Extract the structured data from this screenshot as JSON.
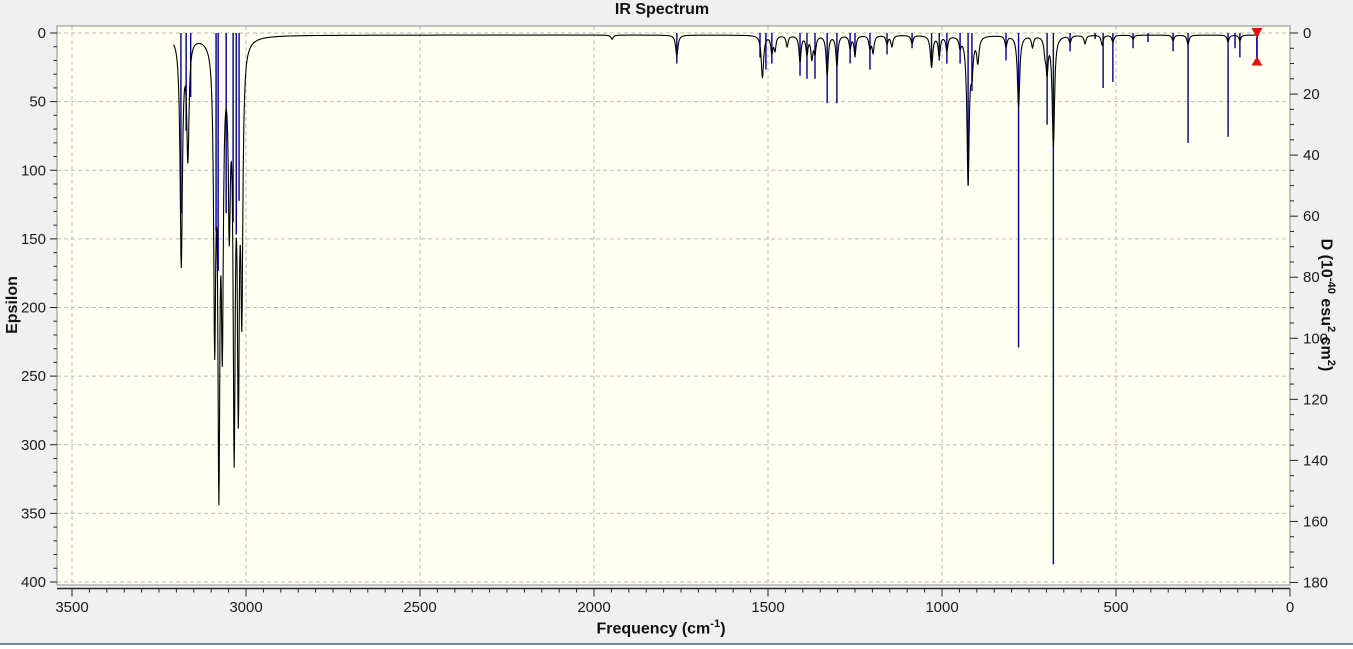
{
  "window": {
    "background": "#f0f0f0",
    "bottom_border_color": "#7b8796"
  },
  "chart_data": {
    "type": "line",
    "title": "IR Spectrum",
    "x_axis": {
      "title_parts": [
        {
          "t": "Frequency (cm"
        },
        {
          "t": "-1",
          "sup": true
        },
        {
          "t": ")"
        }
      ],
      "min": 0,
      "max": 3500,
      "inverted": true,
      "major_step": 500,
      "minor_step": 50,
      "tick_labels": [
        "3500",
        "3000",
        "2500",
        "2000",
        "1500",
        "1000",
        "500",
        "0"
      ]
    },
    "y_left_axis": {
      "title": "Epsilon",
      "min": 0,
      "max": 400,
      "increases_downward": true,
      "major_step": 50,
      "minor_step": 10,
      "tick_labels": [
        "0",
        "50",
        "100",
        "150",
        "200",
        "250",
        "300",
        "350",
        "400"
      ]
    },
    "y_right_axis": {
      "title_parts": [
        {
          "t": "D (10"
        },
        {
          "t": "-40",
          "sup": true
        },
        {
          "t": " esu"
        },
        {
          "t": "2",
          "sup": true
        },
        {
          "t": " cm"
        },
        {
          "t": "2",
          "sup": true
        },
        {
          "t": ")"
        }
      ],
      "min": 0,
      "max": 180,
      "increases_downward": true,
      "major_step": 20,
      "minor_step": 5,
      "tick_labels": [
        "0",
        "20",
        "40",
        "60",
        "80",
        "100",
        "120",
        "140",
        "160",
        "180"
      ]
    },
    "grid": {
      "show": true,
      "dashed": true
    },
    "legend": {
      "show": false
    },
    "colors": {
      "plot_background": "#fffff2",
      "outer_background": "#f0f0f0",
      "grid": "#bbbbbb",
      "plot_border": "#8c8c8c",
      "epsilon_curve": "#000000",
      "intensity_impulse": "#00008c",
      "selected_marker": "#e01010",
      "tick_text": "#1b1b1b"
    },
    "baseline_epsilon": 1.5,
    "curve_frequency_range": [
      3208,
      89
    ],
    "epsilon_peaks_freq_amp_width": [
      [
        3186,
        165,
        4
      ],
      [
        3167,
        85,
        4
      ],
      [
        3090,
        205,
        3.5
      ],
      [
        3078,
        300,
        3.5
      ],
      [
        3068,
        195,
        3.5
      ],
      [
        3048,
        120,
        3.5
      ],
      [
        3034,
        280,
        3.5
      ],
      [
        3022,
        240,
        3.5
      ],
      [
        3012,
        180,
        3.5
      ],
      [
        1948,
        3,
        4
      ],
      [
        1762,
        15,
        4
      ],
      [
        1516,
        31,
        4
      ],
      [
        1489,
        12,
        3.5
      ],
      [
        1480,
        10,
        3.5
      ],
      [
        1445,
        8,
        3.5
      ],
      [
        1408,
        19,
        3.5
      ],
      [
        1388,
        13,
        3.5
      ],
      [
        1374,
        16,
        3.5
      ],
      [
        1365,
        12,
        3.5
      ],
      [
        1330,
        29,
        3.5
      ],
      [
        1302,
        22,
        3.5
      ],
      [
        1264,
        9,
        3.5
      ],
      [
        1250,
        14,
        3.5
      ],
      [
        1207,
        9,
        3.5
      ],
      [
        1198,
        12,
        3.5
      ],
      [
        1158,
        6,
        3.5
      ],
      [
        1144,
        8,
        3.5
      ],
      [
        1086,
        6,
        3.5
      ],
      [
        1030,
        23,
        4
      ],
      [
        1008,
        15,
        3.5
      ],
      [
        986,
        11,
        3.5
      ],
      [
        948,
        7,
        3.5
      ],
      [
        925,
        106,
        4
      ],
      [
        914,
        22,
        4
      ],
      [
        897,
        18,
        4
      ],
      [
        816,
        8,
        3.5
      ],
      [
        780,
        52,
        4
      ],
      [
        740,
        8,
        3.5
      ],
      [
        704,
        10,
        3.5
      ],
      [
        698,
        24,
        3.5
      ],
      [
        680,
        80,
        4
      ],
      [
        632,
        5,
        3.5
      ],
      [
        589,
        6,
        3.5
      ],
      [
        540,
        7,
        3.5
      ],
      [
        509,
        5,
        3.5
      ],
      [
        451,
        3,
        3.5
      ],
      [
        336,
        4,
        3.5
      ],
      [
        293,
        7,
        3.5
      ],
      [
        178,
        5,
        3.5
      ],
      [
        144,
        4,
        3.5
      ]
    ],
    "vibrational_modes_freq_intensityD": [
      [
        3187,
        59
      ],
      [
        3172,
        32
      ],
      [
        3159,
        21
      ],
      [
        3086,
        65
      ],
      [
        3080,
        78
      ],
      [
        3057,
        59
      ],
      [
        3037,
        62
      ],
      [
        3028,
        66
      ],
      [
        3020,
        55
      ],
      [
        1762,
        10
      ],
      [
        1523,
        8
      ],
      [
        1506,
        12
      ],
      [
        1489,
        10
      ],
      [
        1408,
        14
      ],
      [
        1388,
        15
      ],
      [
        1365,
        15
      ],
      [
        1330,
        23
      ],
      [
        1302,
        23
      ],
      [
        1264,
        10
      ],
      [
        1250,
        8
      ],
      [
        1207,
        12
      ],
      [
        1158,
        7
      ],
      [
        1086,
        5
      ],
      [
        1030,
        10
      ],
      [
        1008,
        9
      ],
      [
        986,
        10
      ],
      [
        948,
        10
      ],
      [
        925,
        50
      ],
      [
        914,
        19
      ],
      [
        816,
        9
      ],
      [
        780,
        103
      ],
      [
        698,
        30
      ],
      [
        680,
        174
      ],
      [
        632,
        6
      ],
      [
        560,
        2
      ],
      [
        537,
        18
      ],
      [
        509,
        16
      ],
      [
        451,
        5
      ],
      [
        408,
        3
      ],
      [
        336,
        6
      ],
      [
        293,
        36
      ],
      [
        178,
        34
      ],
      [
        158,
        5
      ],
      [
        144,
        8
      ],
      [
        95,
        9
      ]
    ],
    "selected_mode": {
      "frequency": 95,
      "intensity_D": 9
    }
  }
}
